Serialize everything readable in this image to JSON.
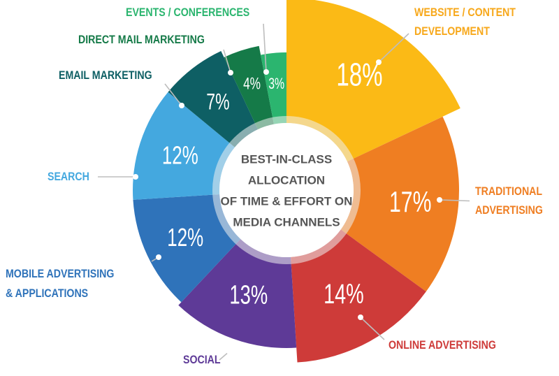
{
  "chart_data": {
    "type": "pie",
    "center_title": [
      "BEST-IN-CLASS",
      "ALLOCATION",
      "OF TIME & EFFORT ON",
      "MEDIA CHANNELS"
    ],
    "unit": "%",
    "slices": [
      {
        "label": [
          "WEBSITE / CONTENT",
          "DEVELOPMENT"
        ],
        "value": 18,
        "display": "18%",
        "color": "#FBBA16",
        "label_color": "#F7A81B"
      },
      {
        "label": [
          "TRADITIONAL",
          "ADVERTISING"
        ],
        "value": 17,
        "display": "17%",
        "color": "#EF7E22",
        "label_color": "#EF7E22"
      },
      {
        "label": [
          "ONLINE ADVERTISING"
        ],
        "value": 14,
        "display": "14%",
        "color": "#CE3B39",
        "label_color": "#CE3B39"
      },
      {
        "label": [
          "SOCIAL"
        ],
        "value": 13,
        "display": "13%",
        "color": "#5E3A97",
        "label_color": "#5E3A97"
      },
      {
        "label": [
          "MOBILE ADVERTISING",
          "& APPLICATIONS"
        ],
        "value": 12,
        "display": "12%",
        "color": "#2F73BA",
        "label_color": "#2F73BA"
      },
      {
        "label": [
          "SEARCH"
        ],
        "value": 12,
        "display": "12%",
        "color": "#44A8DF",
        "label_color": "#44A8DF"
      },
      {
        "label": [
          "EMAIL MARKETING"
        ],
        "value": 7,
        "display": "7%",
        "color": "#0E5F64",
        "label_color": "#0E5F64"
      },
      {
        "label": [
          "DIRECT MAIL MARKETING"
        ],
        "value": 4,
        "display": "4%",
        "color": "#157A48",
        "label_color": "#157A48"
      },
      {
        "label": [
          "EVENTS / CONFERENCES"
        ],
        "value": 3,
        "display": "3%",
        "color": "#2BB56F",
        "label_color": "#2BB56F"
      }
    ]
  }
}
